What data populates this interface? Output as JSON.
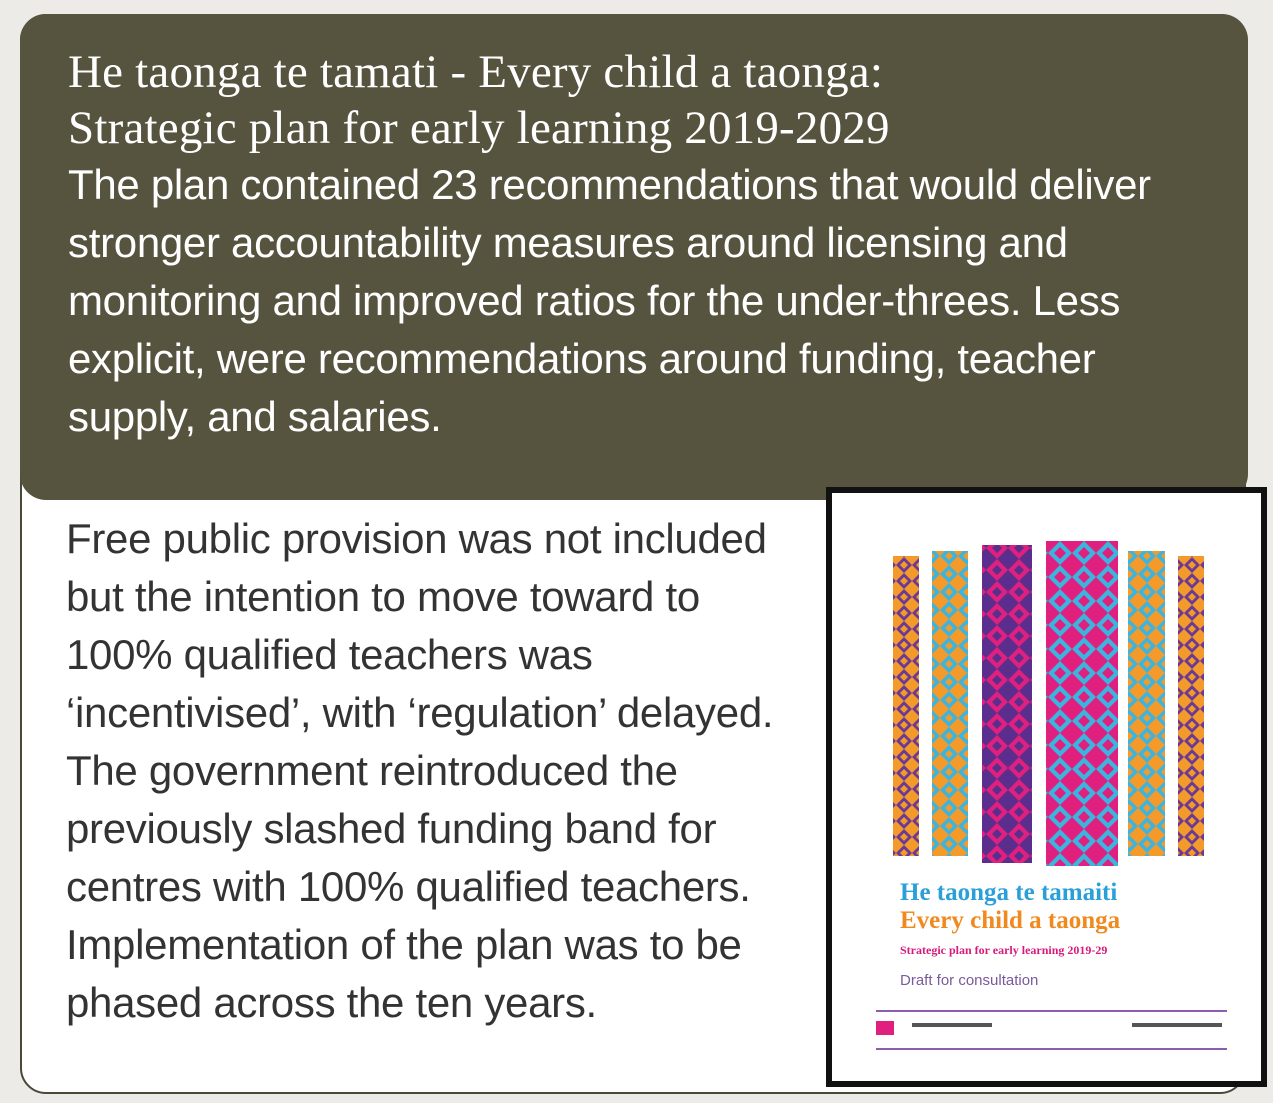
{
  "header": {
    "title_lines": [
      "He taonga te tamati - Every child a taonga:",
      "Strategic plan for early learning 2019-2029"
    ],
    "summary": "The plan contained 23 recommendations that would deliver stronger accountability measures around licensing and monitoring and improved ratios for the under-threes. Less explicit, were recommendations around funding, teacher supply, and salaries."
  },
  "body": {
    "paragraph": "Free public provision was not included but the intention to move toward to 100% qualified teachers was ‘incentivised’, with ‘regulation’ delayed. The government reintroduced the previously slashed funding band for centres with 100% qualified teachers. Implementation of the plan was to be phased across the ten years."
  },
  "cover": {
    "title_maori": "He taonga te tamaiti",
    "title_english": "Every child a taonga",
    "subtitle": "Strategic plan for early learning 2019-29",
    "status": "Draft for consultation"
  }
}
